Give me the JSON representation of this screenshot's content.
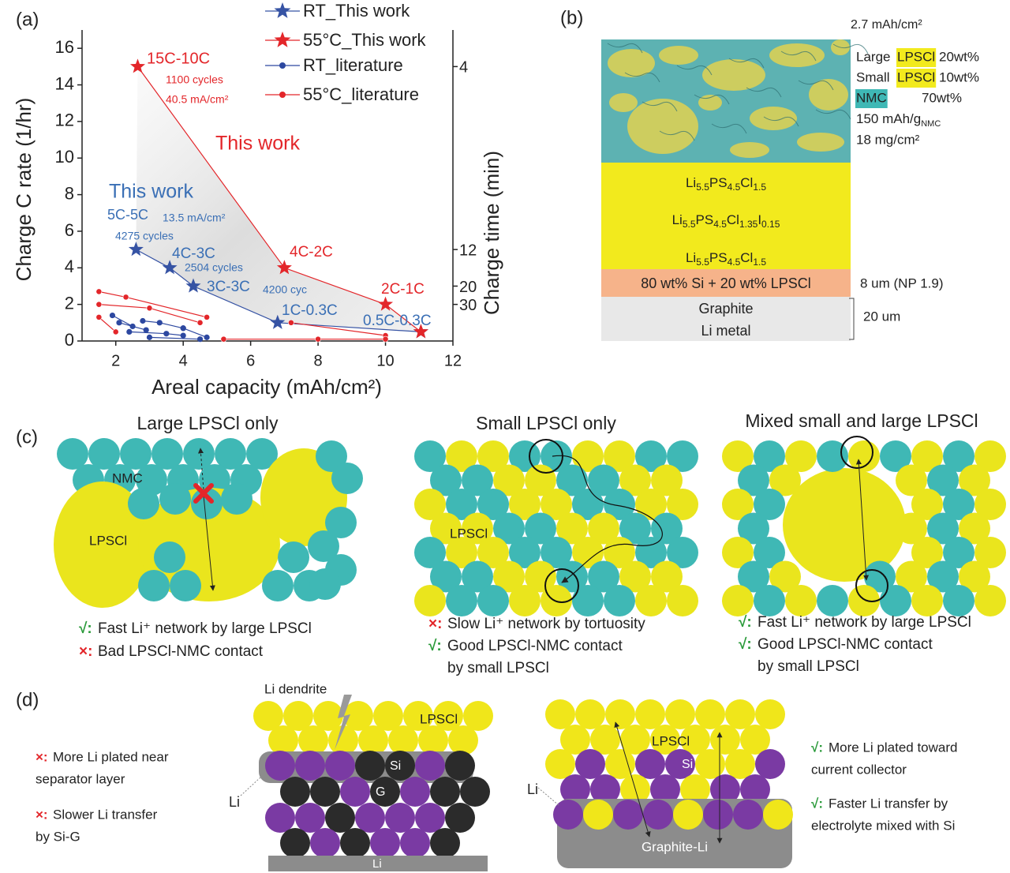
{
  "panel_labels": [
    "(a)",
    "(b)",
    "(c)",
    "(d)"
  ],
  "chart_data": {
    "type": "line",
    "xlabel": "Areal capacity (mAh/cm²)",
    "ylabel": "Charge C rate (1/hr)",
    "y2label": "Charge time (min)",
    "xlim": [
      1,
      12
    ],
    "xticks": [
      2,
      4,
      6,
      8,
      10,
      12
    ],
    "ylim": [
      0,
      17
    ],
    "yticks": [
      0,
      2,
      4,
      6,
      8,
      10,
      12,
      14,
      16
    ],
    "y2ticks": [
      4,
      12,
      20,
      30
    ],
    "series": [
      {
        "name": "RT_This work",
        "color": "#3653a4",
        "marker": "star",
        "x": [
          2.6,
          3.6,
          4.3,
          6.8,
          11.05
        ],
        "values": [
          5,
          4,
          3,
          1,
          0.5
        ]
      },
      {
        "name": "55°C_This work",
        "color": "#e3262a",
        "marker": "star",
        "x": [
          2.65,
          7,
          10,
          11.05
        ],
        "values": [
          15,
          4,
          2,
          0.5
        ]
      },
      {
        "name": "RT_literature",
        "color": "#2d48a0",
        "marker": "dot",
        "x": [
          1.9,
          2.5,
          null,
          2.1,
          2.9,
          null,
          2.4,
          3.5,
          4.0,
          null,
          2.8,
          3.3,
          4.0,
          null,
          3.0,
          4.5,
          null,
          4.0,
          4.7
        ],
        "values": [
          1.4,
          0.8,
          null,
          1.0,
          0.6,
          null,
          0.5,
          0.4,
          0.3,
          null,
          1.1,
          1.0,
          0.7,
          null,
          0.2,
          0.1,
          null,
          0.7,
          0.2
        ]
      },
      {
        "name": "55°C_literature",
        "color": "#e3262a",
        "marker": "dot",
        "x": [
          1.5,
          2.3,
          4.7,
          null,
          1.5,
          3.0,
          4.5,
          null,
          1.5,
          2.0,
          null,
          7.2,
          10,
          null,
          5.2,
          8.0,
          10
        ],
        "values": [
          2.7,
          2.4,
          1.3,
          null,
          2.0,
          1.8,
          1.0,
          null,
          1.3,
          0.5,
          null,
          1.0,
          0.3,
          null,
          0.1,
          0.1,
          0.1
        ]
      }
    ],
    "annotations": [
      {
        "text": "15C-10C",
        "color": "#e3262a"
      },
      {
        "text": "1100 cycles",
        "color": "#e3262a"
      },
      {
        "text": "40.5 mA/cm²",
        "color": "#e3262a"
      },
      {
        "text": "This work",
        "color": "#e3262a"
      },
      {
        "text": "This work",
        "color": "#3a6fb5"
      },
      {
        "text": "5C-5C",
        "color": "#3a6fb5"
      },
      {
        "text": "13.5 mA/cm²",
        "color": "#3a6fb5"
      },
      {
        "text": "4275 cycles",
        "color": "#3a6fb5"
      },
      {
        "text": "4C-3C",
        "color": "#3a6fb5"
      },
      {
        "text": "2504 cycles",
        "color": "#3a6fb5"
      },
      {
        "text": "3C-3C",
        "color": "#3a6fb5"
      },
      {
        "text": "4200 cyc",
        "color": "#3a6fb5"
      },
      {
        "text": "4C-2C",
        "color": "#e3262a"
      },
      {
        "text": "2C-1C",
        "color": "#e3262a"
      },
      {
        "text": "1C-0.3C",
        "color": "#3a6fb5"
      },
      {
        "text": "0.5C-0.3C",
        "color": "#3a6fb5"
      }
    ]
  },
  "panel_b": {
    "capacity": "2.7 mAh/cm²",
    "composition": [
      {
        "label": "Large",
        "material": "LPSCl",
        "wt": "20wt%",
        "color": "#f2ea1d"
      },
      {
        "label": "Small",
        "material": "LPSCl",
        "wt": "10wt%",
        "color": "#f2ea1d"
      },
      {
        "material": "NMC",
        "wt": "70wt%",
        "color": "#3fb8b5"
      }
    ],
    "specific_capacity": [
      "150 mAh/g",
      "NMC"
    ],
    "loading": "18 mg/cm²",
    "electrolyte_layers": [
      [
        "Li",
        "5.5",
        "PS",
        "4.5",
        "Cl",
        "1.5"
      ],
      [
        "Li",
        "5.5",
        "PS",
        "4.5",
        "Cl",
        "1.35",
        "I",
        "0.15"
      ],
      [
        "Li",
        "5.5",
        "PS",
        "4.5",
        "Cl",
        "1.5"
      ]
    ],
    "anode_layer": "80 wt% Si + 20 wt% LPSCl",
    "anode_thickness": "8 um (NP 1.9)",
    "graphite": "Graphite",
    "li_metal": "Li metal",
    "li_thickness": "20 um"
  },
  "panel_c": [
    {
      "title": "Large LPSCl only",
      "labels": [
        "NMC",
        "LPSCl"
      ],
      "notes": [
        {
          "mark": "√:",
          "color": "#2a9a3a",
          "text": "Fast Li⁺ network by large LPSCl"
        },
        {
          "mark": "×:",
          "color": "#e3262a",
          "text": "Bad LPSCl-NMC contact"
        }
      ]
    },
    {
      "title": "Small LPSCl only",
      "labels": [
        "LPSCl"
      ],
      "notes": [
        {
          "mark": "×:",
          "color": "#e3262a",
          "text": "Slow Li⁺ network by tortuosity"
        },
        {
          "mark": "√:",
          "color": "#2a9a3a",
          "text": "Good LPSCl-NMC contact"
        },
        {
          "text": "by small LPSCl"
        }
      ]
    },
    {
      "title": "Mixed small and large LPSCl",
      "notes": [
        {
          "mark": "√:",
          "color": "#2a9a3a",
          "text": "Fast Li⁺ network by large LPSCl"
        },
        {
          "mark": "√:",
          "color": "#2a9a3a",
          "text": "Good LPSCl-NMC contact"
        },
        {
          "text": "by small LPSCl"
        }
      ]
    }
  ],
  "panel_d": {
    "left_notes": [
      {
        "mark": "×:",
        "color": "#e3262a",
        "lines": [
          "More Li plated near",
          "separator layer"
        ]
      },
      {
        "mark": "×:",
        "color": "#e3262a",
        "lines": [
          "Slower Li transfer",
          "by Si-G"
        ]
      }
    ],
    "left_labels": {
      "dendrite": "Li dendrite",
      "electrolyte": "LPSCl",
      "si": "Si",
      "graphite": "G",
      "li_side": "Li",
      "li_bottom": "Li"
    },
    "right_labels": {
      "electrolyte": "LPSCl",
      "si": "Si",
      "li_side": "Li",
      "base": "Graphite-Li"
    },
    "right_notes": [
      {
        "mark": "√:",
        "color": "#2a9a3a",
        "lines": [
          "More Li plated toward",
          "current collector"
        ]
      },
      {
        "mark": "√:",
        "color": "#2a9a3a",
        "lines": [
          "Faster Li transfer by",
          "electrolyte mixed with Si"
        ]
      }
    ]
  }
}
